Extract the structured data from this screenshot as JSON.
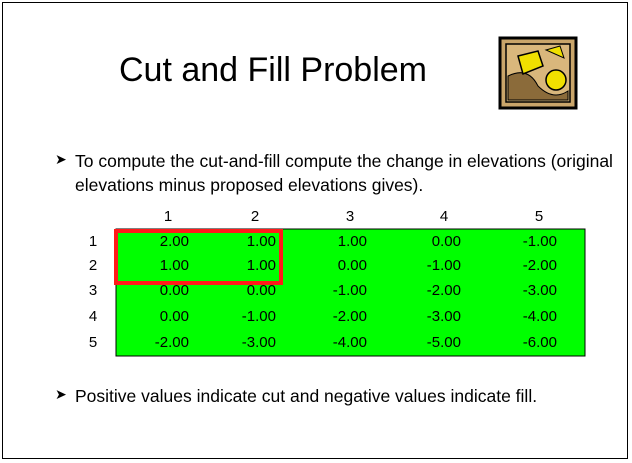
{
  "header": {
    "title": "Cut and Fill Problem"
  },
  "bullets": [
    "To compute the cut-and-fill compute the change in elevations (original elevations minus proposed elevations gives).",
    "Positive values indicate cut and negative values indicate fill."
  ],
  "table": {
    "columns": [
      "1",
      "2",
      "3",
      "4",
      "5"
    ],
    "row_labels": [
      "1",
      "2",
      "3",
      "4",
      "5"
    ],
    "rows": [
      [
        "2.00",
        "1.00",
        "1.00",
        "0.00",
        "-1.00"
      ],
      [
        "1.00",
        "1.00",
        "0.00",
        "-1.00",
        "-2.00"
      ],
      [
        "0.00",
        "0.00",
        "-1.00",
        "-2.00",
        "-3.00"
      ],
      [
        "0.00",
        "-1.00",
        "-2.00",
        "-3.00",
        "-4.00"
      ],
      [
        "-2.00",
        "-3.00",
        "-4.00",
        "-5.00",
        "-6.00"
      ]
    ]
  }
}
